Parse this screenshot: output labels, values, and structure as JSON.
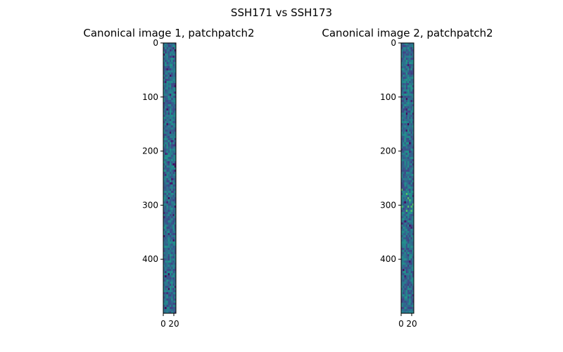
{
  "figure": {
    "suptitle": "SSH171 vs SSH173"
  },
  "chart_data": [
    {
      "type": "heatmap",
      "title": "Canonical image 1, patchpatch2",
      "xlabel": "",
      "ylabel": "",
      "colormap": "viridis",
      "image_size": {
        "rows": 500,
        "cols": 24
      },
      "xlim": [
        0,
        24
      ],
      "ylim": [
        500,
        0
      ],
      "x_ticks": [
        0,
        20
      ],
      "x_tick_labels": [
        "0",
        "20"
      ],
      "y_ticks": [
        0,
        100,
        200,
        300,
        400
      ],
      "y_tick_labels": [
        "0",
        "100",
        "200",
        "300",
        "400"
      ],
      "grid": false,
      "dominant_color": "#2a788e"
    },
    {
      "type": "heatmap",
      "title": "Canonical image 2, patchpatch2",
      "xlabel": "",
      "ylabel": "",
      "colormap": "viridis",
      "image_size": {
        "rows": 500,
        "cols": 24
      },
      "xlim": [
        0,
        24
      ],
      "ylim": [
        500,
        0
      ],
      "x_ticks": [
        0,
        20
      ],
      "x_tick_labels": [
        "0",
        "20"
      ],
      "y_ticks": [
        0,
        100,
        200,
        300,
        400
      ],
      "y_tick_labels": [
        "0",
        "100",
        "200",
        "300",
        "400"
      ],
      "grid": false,
      "dominant_color": "#2a788e"
    }
  ]
}
